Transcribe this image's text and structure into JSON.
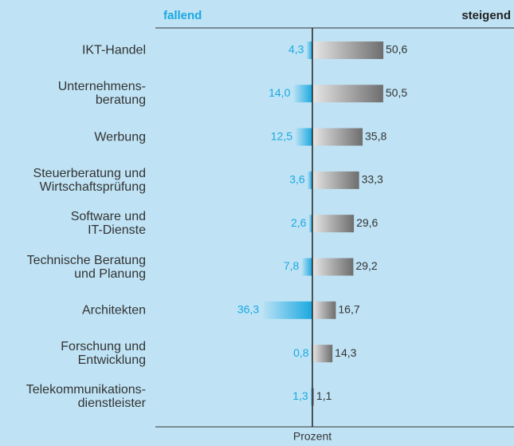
{
  "chart_data": {
    "type": "diverging-bar",
    "categories": [
      "IKT-Handel",
      "Unternehmens-\nberatung",
      "Werbung",
      "Steuerberatung und\nWirtschaftsprüfung",
      "Software und\nIT-Dienste",
      "Technische Beratung\nund Planung",
      "Architekten",
      "Forschung und\nEntwicklung",
      "Telekommunikations-\ndienstleister"
    ],
    "series": [
      {
        "name": "fallend",
        "color": "#1aa8e0",
        "values": [
          4.3,
          14.0,
          12.5,
          3.6,
          2.6,
          7.8,
          36.3,
          0.8,
          1.3
        ],
        "value_labels": [
          "4,3",
          "14,0",
          "12,5",
          "3,6",
          "2,6",
          "7,8",
          "36,3",
          "0,8",
          "1,3"
        ]
      },
      {
        "name": "steigend",
        "color": "#6e6e6e",
        "values": [
          50.6,
          50.5,
          35.8,
          33.3,
          29.6,
          29.2,
          16.7,
          14.3,
          1.1
        ],
        "value_labels": [
          "50,6",
          "50,5",
          "35,8",
          "33,3",
          "29,6",
          "29,2",
          "16,7",
          "14,3",
          "1,1"
        ]
      }
    ],
    "xlabel": "Prozent"
  }
}
